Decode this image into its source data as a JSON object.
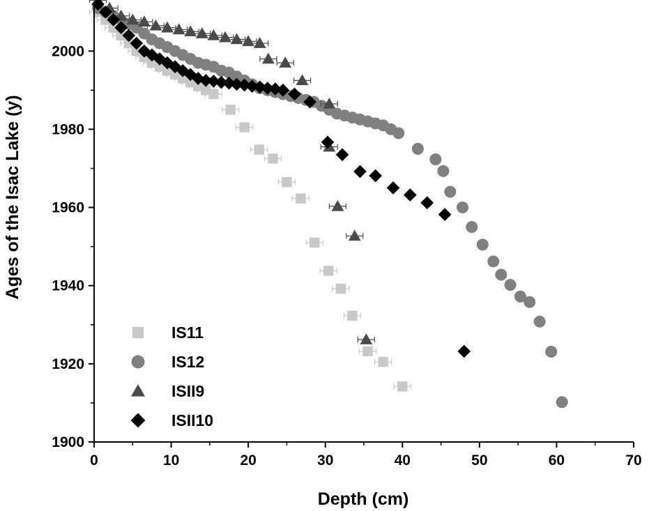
{
  "chart_data": {
    "type": "scatter",
    "title": "",
    "xlabel": "Depth (cm)",
    "ylabel": "Ages of the Isac Lake (y)",
    "xlim": [
      0,
      70
    ],
    "ylim": [
      1900,
      2012
    ],
    "xticks": [
      "0",
      "10",
      "20",
      "30",
      "40",
      "50",
      "60",
      "70"
    ],
    "yticks": [
      "1900",
      "1920",
      "1940",
      "1960",
      "1980",
      "2000"
    ],
    "grid": false,
    "legend_position": "bottom-left",
    "series": [
      {
        "name": "IS11",
        "marker": "square",
        "color": "#c8c8c8",
        "error_bars": "horizontal",
        "points": [
          [
            0.5,
            2010
          ],
          [
            1.5,
            2008
          ],
          [
            2.5,
            2006
          ],
          [
            3.5,
            2004
          ],
          [
            4.5,
            2002
          ],
          [
            5.5,
            2000
          ],
          [
            6.5,
            1998.5
          ],
          [
            7.5,
            1997
          ],
          [
            8.5,
            1996
          ],
          [
            9.5,
            1995
          ],
          [
            10.5,
            1994
          ],
          [
            11.5,
            1993
          ],
          [
            12.5,
            1992
          ],
          [
            13.5,
            1991
          ],
          [
            14.5,
            1990
          ],
          [
            15.5,
            1989
          ],
          [
            17.7,
            1985
          ],
          [
            19.5,
            1980.5
          ],
          [
            21.4,
            1974.8
          ],
          [
            23.2,
            1972.5
          ],
          [
            25,
            1966.5
          ],
          [
            26.8,
            1962.3
          ],
          [
            28.6,
            1951
          ],
          [
            30.4,
            1943.8
          ],
          [
            32,
            1939.2
          ],
          [
            33.5,
            1932.3
          ],
          [
            35.5,
            1923.2
          ],
          [
            37.5,
            1920.5
          ],
          [
            40,
            1914.2
          ]
        ]
      },
      {
        "name": "IS12",
        "marker": "circle",
        "color": "#808080",
        "points": [
          [
            0.5,
            2011
          ],
          [
            1.5,
            2010
          ],
          [
            2.5,
            2009
          ],
          [
            3.5,
            2008
          ],
          [
            4.5,
            2007
          ],
          [
            5.5,
            2006
          ],
          [
            6.5,
            2004.5
          ],
          [
            7.5,
            2003
          ],
          [
            8.5,
            2002
          ],
          [
            9.5,
            2001
          ],
          [
            10.5,
            2000
          ],
          [
            11.5,
            1999
          ],
          [
            12.5,
            1998
          ],
          [
            13.5,
            1997
          ],
          [
            14.5,
            1996.5
          ],
          [
            15.5,
            1996
          ],
          [
            16.5,
            1995
          ],
          [
            17.5,
            1994.5
          ],
          [
            18.5,
            1993.5
          ],
          [
            19.5,
            1992.5
          ],
          [
            20.5,
            1991.5
          ],
          [
            21.5,
            1990.5
          ],
          [
            22.5,
            1990
          ],
          [
            23.5,
            1989.5
          ],
          [
            24.5,
            1989
          ],
          [
            25.5,
            1988.5
          ],
          [
            26.5,
            1988
          ],
          [
            27.5,
            1987.5
          ],
          [
            28.5,
            1987
          ],
          [
            29.5,
            1986
          ],
          [
            30.5,
            1985
          ],
          [
            31.5,
            1984
          ],
          [
            32.5,
            1983.5
          ],
          [
            33.5,
            1983
          ],
          [
            34.5,
            1982.5
          ],
          [
            35.5,
            1982
          ],
          [
            36.5,
            1981.5
          ],
          [
            37.5,
            1981
          ],
          [
            38.5,
            1980
          ],
          [
            39.5,
            1979
          ],
          [
            42,
            1975
          ],
          [
            44.3,
            1972.3
          ],
          [
            45.3,
            1969.3
          ],
          [
            46.2,
            1964
          ],
          [
            47.8,
            1960
          ],
          [
            49,
            1955
          ],
          [
            50.4,
            1950.5
          ],
          [
            51.8,
            1946.2
          ],
          [
            52.8,
            1942.8
          ],
          [
            54,
            1940.2
          ],
          [
            55.3,
            1937.2
          ],
          [
            56.5,
            1935.8
          ],
          [
            57.8,
            1930.8
          ],
          [
            59.3,
            1923.1
          ],
          [
            60.7,
            1910.2
          ]
        ]
      },
      {
        "name": "ISII9",
        "marker": "triangle",
        "color": "#4a4a4a",
        "error_bars": "horizontal",
        "points": [
          [
            0.5,
            2013
          ],
          [
            2,
            2011
          ],
          [
            3.5,
            2009
          ],
          [
            5,
            2008
          ],
          [
            6.5,
            2007.5
          ],
          [
            8,
            2006.5
          ],
          [
            9.5,
            2006
          ],
          [
            11,
            2005.5
          ],
          [
            12.5,
            2005
          ],
          [
            14,
            2004.5
          ],
          [
            15.5,
            2004
          ],
          [
            17,
            2003.5
          ],
          [
            18.5,
            2003
          ],
          [
            20,
            2002.5
          ],
          [
            21.5,
            2002
          ],
          [
            22.6,
            1998
          ],
          [
            24.8,
            1997
          ],
          [
            27,
            1992.5
          ],
          [
            30.5,
            1986.5
          ],
          [
            30.5,
            1975.5
          ],
          [
            31.6,
            1960.3
          ],
          [
            33.8,
            1952.7
          ],
          [
            35.3,
            1926.2
          ]
        ]
      },
      {
        "name": "ISII10",
        "marker": "diamond",
        "color": "#000000",
        "points": [
          [
            0.5,
            2012
          ],
          [
            1.5,
            2010
          ],
          [
            2.5,
            2008
          ],
          [
            3.5,
            2006
          ],
          [
            4.5,
            2004
          ],
          [
            5.5,
            2002
          ],
          [
            6.5,
            2000
          ],
          [
            7.5,
            1999
          ],
          [
            8.5,
            1998
          ],
          [
            9.5,
            1997
          ],
          [
            10.5,
            1996
          ],
          [
            11.5,
            1995
          ],
          [
            12.5,
            1994
          ],
          [
            13.5,
            1993
          ],
          [
            14.5,
            1992.5
          ],
          [
            15.5,
            1992.3
          ],
          [
            16.5,
            1992
          ],
          [
            17.5,
            1991.8
          ],
          [
            18.5,
            1991.5
          ],
          [
            19.5,
            1991.3
          ],
          [
            20.5,
            1991
          ],
          [
            21.5,
            1990.8
          ],
          [
            22.5,
            1990.5
          ],
          [
            23.5,
            1990.3
          ],
          [
            24.5,
            1990
          ],
          [
            26,
            1989
          ],
          [
            28,
            1987
          ],
          [
            30.3,
            1976.7
          ],
          [
            32.2,
            1973.5
          ],
          [
            34.5,
            1969.2
          ],
          [
            36.5,
            1968.1
          ],
          [
            38.8,
            1965
          ],
          [
            41,
            1963.2
          ],
          [
            43.2,
            1961.2
          ],
          [
            45.5,
            1958.2
          ],
          [
            48,
            1923.2
          ]
        ]
      }
    ]
  }
}
